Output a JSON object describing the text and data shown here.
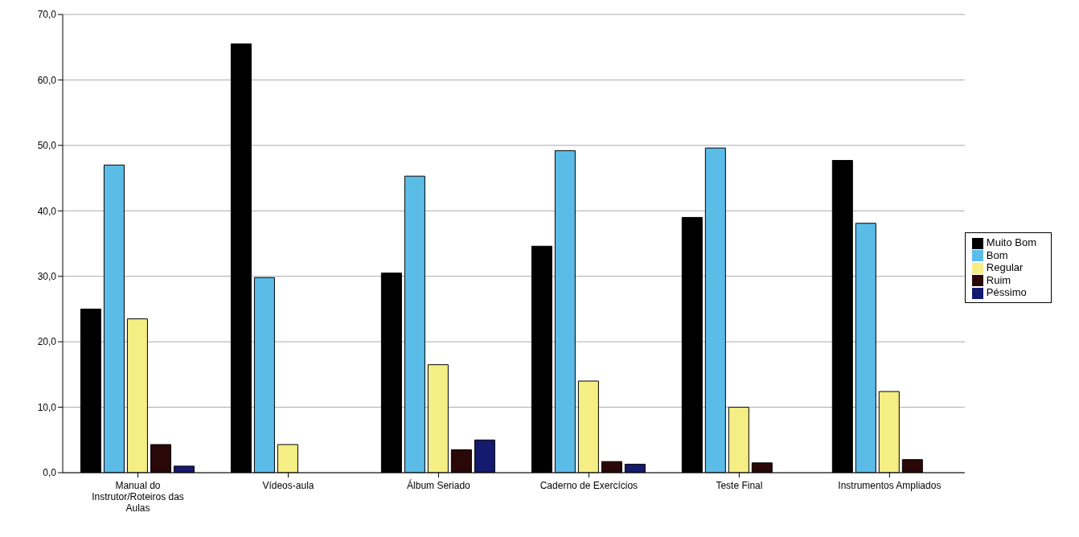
{
  "chart_data": {
    "type": "bar",
    "categories": [
      "Manual do Instrutor/Roteiros das Aulas",
      "Vídeos-aula",
      "Álbum Seriado",
      "Caderno de Exercícios",
      "Teste Final",
      "Instrumentos Ampliados"
    ],
    "series": [
      {
        "name": "Muito Bom",
        "color": "#000000",
        "values": [
          25,
          65.5,
          30.5,
          34.6,
          39,
          47.7
        ]
      },
      {
        "name": "Bom",
        "color": "#5bbce8",
        "values": [
          47,
          29.8,
          45.3,
          49.2,
          49.6,
          38.1
        ]
      },
      {
        "name": "Regular",
        "color": "#f5ee84",
        "values": [
          23.5,
          4.3,
          16.5,
          14,
          10,
          12.4
        ]
      },
      {
        "name": "Ruim",
        "color": "#2a0808",
        "values": [
          4.3,
          0,
          3.5,
          1.7,
          1.5,
          2
        ]
      },
      {
        "name": "Péssimo",
        "color": "#141a6e",
        "values": [
          1,
          0,
          5,
          1.3,
          0,
          0
        ]
      }
    ],
    "ylim": [
      0,
      70
    ],
    "yticks": [
      {
        "value": 0,
        "label": "0,0"
      },
      {
        "value": 10,
        "label": "10,0"
      },
      {
        "value": 20,
        "label": "20,0"
      },
      {
        "value": 30,
        "label": "30,0"
      },
      {
        "value": 40,
        "label": "40,0"
      },
      {
        "value": 50,
        "label": "50,0"
      },
      {
        "value": 60,
        "label": "60,0"
      },
      {
        "value": 70,
        "label": "70,0"
      }
    ],
    "grid": "y",
    "legend": "right"
  }
}
